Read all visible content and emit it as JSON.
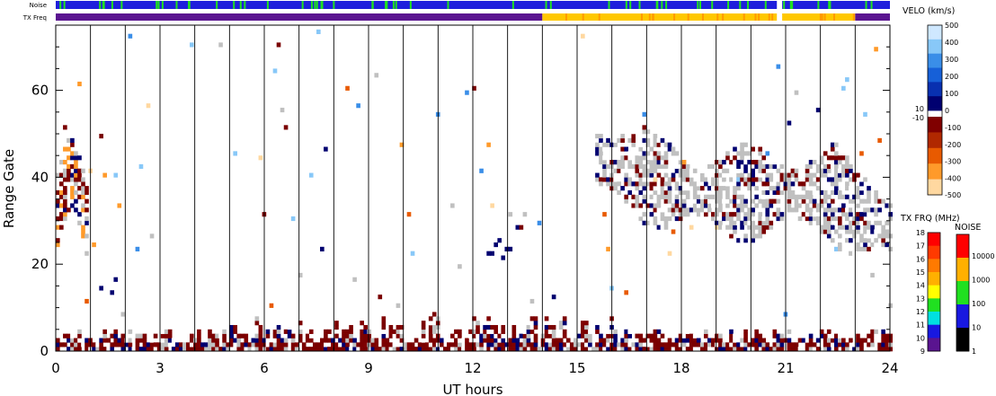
{
  "chart_data": {
    "type": "heatmap",
    "title": "",
    "xlabel": "UT hours",
    "ylabel": "Range Gate",
    "x_range": [
      0,
      24
    ],
    "y_range": [
      0,
      75
    ],
    "x_ticks": [
      {
        "value": 0,
        "label": "0"
      },
      {
        "value": 3,
        "label": "3"
      },
      {
        "value": 6,
        "label": "6"
      },
      {
        "value": 9,
        "label": "9"
      },
      {
        "value": 12,
        "label": "12"
      },
      {
        "value": 15,
        "label": "15"
      },
      {
        "value": 18,
        "label": "18"
      },
      {
        "value": 21,
        "label": "21"
      },
      {
        "value": 24,
        "label": "24"
      }
    ],
    "y_ticks": [
      {
        "value": 0,
        "label": "0"
      },
      {
        "value": 20,
        "label": "20"
      },
      {
        "value": 40,
        "label": "40"
      },
      {
        "value": 60,
        "label": "60"
      }
    ],
    "hour_gridlines": true,
    "top_strips": [
      {
        "label": "Noise",
        "segments": [
          {
            "from": 0,
            "to": 20.75,
            "color": "#1f1fdc"
          },
          {
            "from": 20.75,
            "to": 20.9,
            "color": "#ffffff"
          },
          {
            "from": 20.9,
            "to": 24,
            "color": "#1f1fdc"
          }
        ],
        "accent_color": "#20e020"
      },
      {
        "label": "TX Freq",
        "segments": [
          {
            "from": 0,
            "to": 14.0,
            "color": "#5a1490"
          },
          {
            "from": 14.0,
            "to": 20.75,
            "color": "#ffc800"
          },
          {
            "from": 20.75,
            "to": 20.9,
            "color": "#ffffff"
          },
          {
            "from": 20.9,
            "to": 23.0,
            "color": "#ffc800"
          },
          {
            "from": 23.0,
            "to": 24,
            "color": "#5a1490"
          }
        ],
        "accent_color": "#ff9a00"
      }
    ],
    "regions": [
      {
        "name": "ground-scatter-low-gates",
        "x": [
          0,
          24
        ],
        "gate": [
          0,
          7
        ],
        "dominant": "#7a0000"
      },
      {
        "name": "early-echo-band",
        "x": [
          0,
          0.9
        ],
        "gate": [
          20,
          60
        ],
        "dominant": "#7a0000"
      },
      {
        "name": "gate15-patch",
        "x": [
          1.0,
          1.7
        ],
        "gate": [
          12,
          17
        ],
        "dominant": "#000080"
      },
      {
        "name": "gate23-patch",
        "x": [
          12.3,
          13.2
        ],
        "gate": [
          21,
          26
        ],
        "dominant": "#000080"
      },
      {
        "name": "evening-ground-scatter",
        "x": [
          15.5,
          24
        ],
        "gate": [
          20,
          52
        ],
        "dominant": "#c0c0c0"
      }
    ],
    "colorbars": [
      {
        "title": "VELO (km/s)",
        "upper_labels": [
          "500",
          "400",
          "300",
          "200",
          "100",
          "0"
        ],
        "upper_colors": [
          "#cfe8ff",
          "#88c8f8",
          "#3a8ee8",
          "#1660d8",
          "#0830b0",
          "#000070"
        ],
        "lower_labels": [
          "-100",
          "-200",
          "-300",
          "-400",
          "-500"
        ],
        "lower_colors": [
          "#800000",
          "#b02800",
          "#e85a00",
          "#ff9a2a",
          "#ffd8a0"
        ],
        "extra_labels": [
          "10",
          "-10"
        ]
      },
      {
        "title": "TX FRQ (MHz)",
        "labels": [
          "18",
          "17",
          "16",
          "15",
          "14",
          "13",
          "12",
          "11",
          "10",
          "9"
        ],
        "colors": [
          "#ff0000",
          "#ff3a00",
          "#ff7a00",
          "#ffb000",
          "#ffff00",
          "#20e020",
          "#00e0e0",
          "#1818e0",
          "#5a1490"
        ]
      },
      {
        "title": "NOISE",
        "labels": [
          "10000",
          "1000",
          "100",
          "10",
          "1"
        ],
        "colors": [
          "#ff0000",
          "#ffb000",
          "#20e020",
          "#1818e0",
          "#000000"
        ]
      }
    ]
  }
}
